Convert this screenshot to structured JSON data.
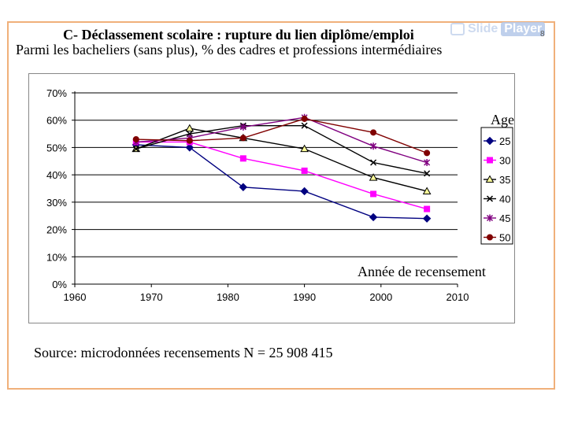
{
  "slide": {
    "title": "C- Déclassement scolaire : rupture du lien diplôme/emploi",
    "subtitle": "Parmi les bacheliers (sans plus), % des cadres et professions intermédiaires",
    "page_number": "8",
    "watermark": {
      "left": "Slide",
      "right": "Player"
    },
    "source": "Source: microdonnées recensements N =  25 908 415"
  },
  "chart_data": {
    "type": "line",
    "title": "",
    "xlabel": "Année de recensement",
    "ylabel": "",
    "legend_title": "Age",
    "legend_position": "right",
    "xlim": [
      1960,
      2010
    ],
    "ylim": [
      0,
      0.7
    ],
    "x_ticks": [
      "1960",
      "1970",
      "1980",
      "1990",
      "2000",
      "2010"
    ],
    "x_tick_values": [
      1960,
      1970,
      1980,
      1990,
      2000,
      2010
    ],
    "y_ticks": [
      "0%",
      "10%",
      "20%",
      "30%",
      "40%",
      "50%",
      "60%",
      "70%"
    ],
    "y_tick_values": [
      0,
      0.1,
      0.2,
      0.3,
      0.4,
      0.5,
      0.6,
      0.7
    ],
    "grid": "horizontal",
    "x": [
      1968,
      1975,
      1982,
      1990,
      1999,
      2006
    ],
    "series": [
      {
        "name": "25",
        "color": "#000080",
        "marker": "diamond",
        "values": [
          0.51,
          0.5,
          0.355,
          0.34,
          0.245,
          0.24
        ]
      },
      {
        "name": "30",
        "color": "#ff00ff",
        "marker": "square",
        "values": [
          0.52,
          0.52,
          0.46,
          0.415,
          0.33,
          0.275
        ]
      },
      {
        "name": "35",
        "color": "#000000",
        "marker": "triangle",
        "fill": "#ffff99",
        "values": [
          0.495,
          0.57,
          0.535,
          0.495,
          0.39,
          0.34
        ]
      },
      {
        "name": "40",
        "color": "#000000",
        "marker": "x",
        "values": [
          0.495,
          0.55,
          0.58,
          0.58,
          0.445,
          0.405
        ]
      },
      {
        "name": "45",
        "color": "#800080",
        "marker": "star",
        "values": [
          0.52,
          0.535,
          0.575,
          0.61,
          0.505,
          0.445
        ]
      },
      {
        "name": "50",
        "color": "#800000",
        "marker": "circle",
        "values": [
          0.53,
          0.525,
          0.535,
          0.605,
          0.555,
          0.48
        ]
      }
    ]
  }
}
